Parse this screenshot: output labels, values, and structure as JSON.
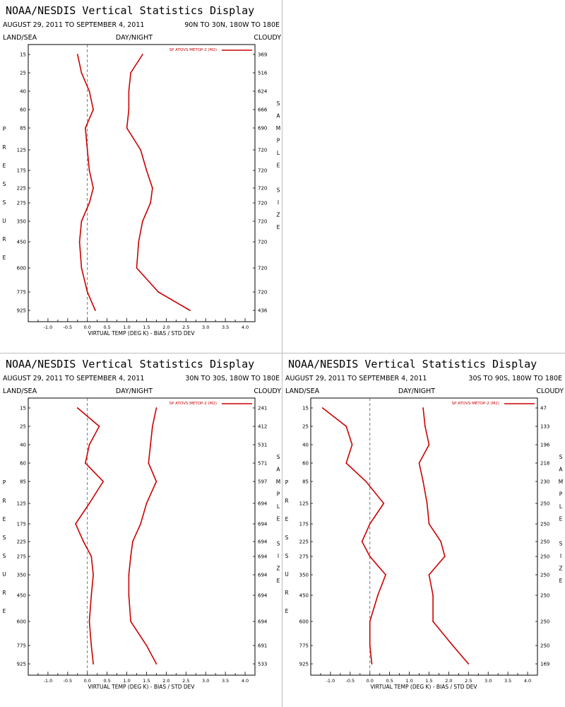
{
  "page": {
    "colors": {
      "line": "#cc0000",
      "axis": "#000000",
      "divider": "#bdbdbd",
      "zero_line": "#555555"
    }
  },
  "panels": [
    {
      "id": "upper-left",
      "title": "NOAA/NESDIS Vertical Statistics Display",
      "date_range": "AUGUST 29, 2011 TO SEPTEMBER 4, 2011",
      "region": "90N TO 30N, 180W TO 180E",
      "label_left": "LAND/SEA",
      "label_center": "DAY/NIGHT",
      "label_right": "CLOUDY",
      "legend": "SP ATOVS METOP-2 (M2)"
    },
    null,
    {
      "id": "lower-left",
      "title": "NOAA/NESDIS Vertical Statistics Display",
      "date_range": "AUGUST 29, 2011 TO SEPTEMBER 4, 2011",
      "region": "30N TO 30S, 180W TO 180E",
      "label_left": "LAND/SEA",
      "label_center": "DAY/NIGHT",
      "label_right": "CLOUDY",
      "legend": "SP ATOVS METOP-2 (M2)"
    },
    {
      "id": "lower-right",
      "title": "NOAA/NESDIS Vertical Statistics Display",
      "date_range": "AUGUST 29, 2011 TO SEPTEMBER 4, 2011",
      "region": "30S TO 90S, 180W TO 180E",
      "label_left": "LAND/SEA",
      "label_center": "DAY/NIGHT",
      "label_right": "CLOUDY",
      "legend": "SP ATOVS METOP-2 (M2)"
    }
  ],
  "chart_data": [
    {
      "type": "line",
      "panel": 0,
      "xlabel": "VIRTUAL TEMP (DEG K) - BIAS / STD DEV",
      "ylabel": "PRESSURE",
      "y2label": "SAMPLE SIZE",
      "x_ticks": [
        "-1.0",
        "-0.5",
        "0.0",
        "0.5",
        "1.0",
        "1.5",
        "2.0",
        "2.5",
        "3.0",
        "3.5",
        "4.0"
      ],
      "xlim": [
        -1.5,
        4.25
      ],
      "pressure_levels": [
        "15",
        "25",
        "40",
        "60",
        "85",
        "125",
        "175",
        "225",
        "275",
        "350",
        "450",
        "600",
        "775",
        "925"
      ],
      "sample_size": [
        "369",
        "516",
        "624",
        "666",
        "690",
        "720",
        "720",
        "720",
        "720",
        "720",
        "720",
        "720",
        "720",
        "436"
      ],
      "series": [
        {
          "name": "BIAS",
          "values": [
            -0.25,
            -0.15,
            0.05,
            0.15,
            -0.05,
            0.0,
            0.05,
            0.15,
            0.05,
            -0.15,
            -0.2,
            -0.15,
            0.0,
            0.2
          ]
        },
        {
          "name": "STD DEV",
          "values": [
            1.4,
            1.1,
            1.05,
            1.05,
            1.0,
            1.35,
            1.5,
            1.65,
            1.6,
            1.4,
            1.3,
            1.25,
            1.8,
            2.6
          ]
        }
      ]
    },
    {
      "type": "line",
      "panel": 2,
      "xlabel": "VIRTUAL TEMP (DEG K) - BIAS / STD DEV",
      "ylabel": "PRESSURE",
      "y2label": "SAMPLE SIZE",
      "x_ticks": [
        "-1.0",
        "-0.5",
        "0.0",
        "0.5",
        "1.0",
        "1.5",
        "2.0",
        "2.5",
        "3.0",
        "3.5",
        "4.0"
      ],
      "xlim": [
        -1.5,
        4.25
      ],
      "pressure_levels": [
        "15",
        "25",
        "40",
        "60",
        "85",
        "125",
        "175",
        "225",
        "275",
        "350",
        "450",
        "600",
        "775",
        "925"
      ],
      "sample_size": [
        "241",
        "412",
        "531",
        "571",
        "597",
        "694",
        "694",
        "694",
        "694",
        "694",
        "694",
        "694",
        "691",
        "533"
      ],
      "series": [
        {
          "name": "BIAS",
          "values": [
            -0.25,
            0.3,
            0.05,
            -0.05,
            0.4,
            0.05,
            -0.3,
            -0.1,
            0.1,
            0.15,
            0.1,
            0.05,
            0.1,
            0.15
          ]
        },
        {
          "name": "STD DEV",
          "values": [
            1.75,
            1.65,
            1.6,
            1.55,
            1.75,
            1.5,
            1.35,
            1.15,
            1.1,
            1.05,
            1.05,
            1.1,
            1.5,
            1.75
          ]
        }
      ]
    },
    {
      "type": "line",
      "panel": 3,
      "xlabel": "VIRTUAL TEMP (DEG K) - BIAS / STD DEV",
      "ylabel": "PRESSURE",
      "y2label": "SAMPLE SIZE",
      "x_ticks": [
        "-1.0",
        "-0.5",
        "0.0",
        "0.5",
        "1.0",
        "1.5",
        "2.0",
        "2.5",
        "3.0",
        "3.5",
        "4.0"
      ],
      "xlim": [
        -1.5,
        4.25
      ],
      "pressure_levels": [
        "15",
        "25",
        "40",
        "60",
        "85",
        "125",
        "175",
        "225",
        "275",
        "350",
        "450",
        "600",
        "775",
        "925"
      ],
      "sample_size": [
        "47",
        "133",
        "196",
        "218",
        "230",
        "250",
        "250",
        "250",
        "250",
        "250",
        "250",
        "250",
        "250",
        "169"
      ],
      "series": [
        {
          "name": "BIAS",
          "values": [
            -1.2,
            -0.6,
            -0.45,
            -0.6,
            -0.1,
            0.35,
            0.0,
            -0.2,
            0.0,
            0.4,
            0.2,
            0.0,
            0.0,
            0.05
          ]
        },
        {
          "name": "STD DEV",
          "values": [
            1.35,
            1.4,
            1.5,
            1.25,
            1.35,
            1.45,
            1.5,
            1.8,
            1.9,
            1.5,
            1.6,
            1.6,
            2.1,
            2.5
          ]
        }
      ]
    }
  ]
}
